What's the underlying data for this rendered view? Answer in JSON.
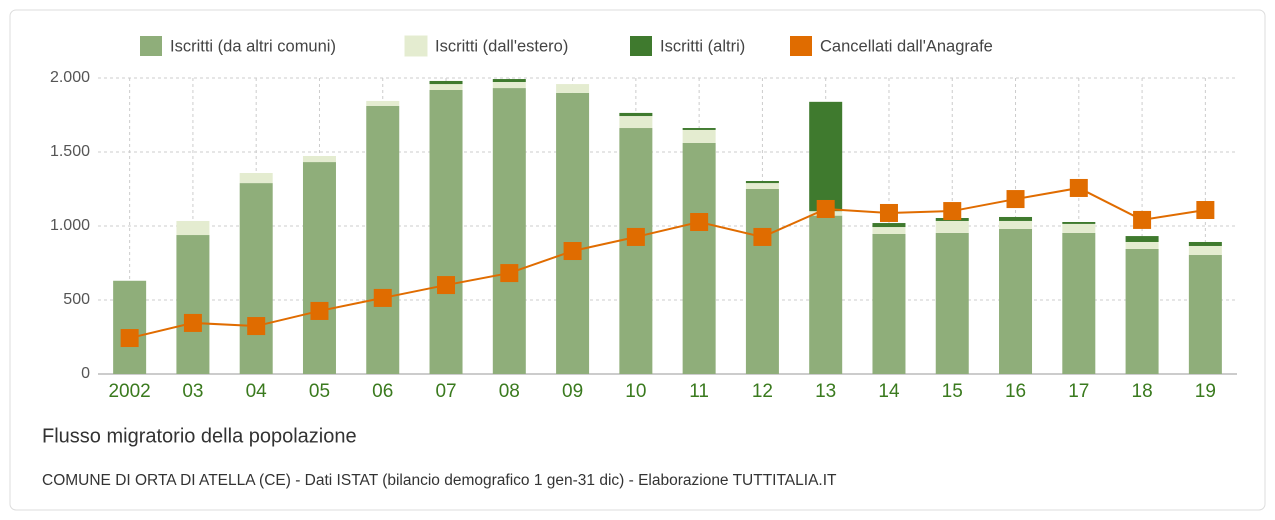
{
  "chart_data": {
    "type": "bar",
    "title": "Flusso migratorio della popolazione",
    "subtitle": "COMUNE DI ORTA DI ATELLA (CE) - Dati ISTAT (bilancio demografico 1 gen-31 dic) - Elaborazione TUTTITALIA.IT",
    "categories": [
      "2002",
      "03",
      "04",
      "05",
      "06",
      "07",
      "08",
      "09",
      "10",
      "11",
      "12",
      "13",
      "14",
      "15",
      "16",
      "17",
      "18",
      "19"
    ],
    "series": [
      {
        "name": "Iscritti (da altri comuni)",
        "color": "#8fae7a",
        "stack": true,
        "values": [
          630,
          939,
          1290,
          1432,
          1811,
          1919,
          1932,
          1899,
          1662,
          1561,
          1250,
          1070,
          946,
          953,
          980,
          953,
          845,
          804
        ]
      },
      {
        "name": "Iscritti (dall'estero)",
        "color": "#e4ecd0",
        "stack": true,
        "values": [
          0,
          95,
          68,
          41,
          34,
          40,
          41,
          60,
          81,
          88,
          40,
          30,
          47,
          81,
          54,
          61,
          47,
          61
        ]
      },
      {
        "name": "Iscritti (altri)",
        "color": "#3f7a2e",
        "stack": true,
        "values": [
          0,
          0,
          0,
          0,
          0,
          21,
          20,
          0,
          21,
          13,
          14,
          739,
          27,
          20,
          27,
          13,
          40,
          27
        ]
      },
      {
        "name": "Cancellati dall'Anagrafe",
        "color": "#e06c00",
        "type": "line",
        "values": [
          243,
          345,
          324,
          426,
          514,
          601,
          682,
          831,
          926,
          1027,
          926,
          1115,
          1088,
          1101,
          1182,
          1257,
          1041,
          1108
        ]
      }
    ],
    "ylim": [
      0,
      2000
    ],
    "yticks": [
      0,
      {
        "value": 500,
        "label": "500"
      },
      {
        "value": 1000,
        "label": "1.000"
      },
      {
        "value": 1500,
        "label": "1.500"
      },
      {
        "value": 2000,
        "label": "2.000"
      }
    ],
    "grid": true
  }
}
